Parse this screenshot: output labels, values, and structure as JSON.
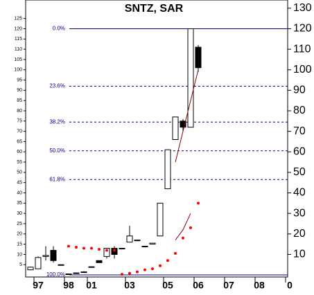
{
  "chart_data": {
    "type": "candlestick",
    "title": "SNTZ, SAR",
    "categories": [
      null,
      "97",
      null,
      null,
      null,
      "98",
      null,
      null,
      "01",
      null,
      null,
      null,
      null,
      "03",
      null,
      null,
      null,
      null,
      "05",
      null,
      null,
      null,
      "06",
      null,
      null,
      null,
      "07",
      null,
      null,
      null,
      "08",
      null,
      null,
      null,
      "0"
    ],
    "open": [
      2.5,
      3,
      9,
      12,
      5,
      0.5,
      1,
      1.5,
      4,
      7,
      9,
      13,
      13,
      16,
      17,
      14,
      15,
      19,
      42,
      66,
      75,
      72,
      111,
      null,
      null,
      null,
      null,
      null,
      null,
      null,
      null,
      null,
      null,
      null,
      null
    ],
    "high": [
      4,
      9,
      14,
      14,
      5,
      0.5,
      1.2,
      1.8,
      4.2,
      7,
      13,
      14,
      13,
      24,
      17,
      14,
      15.5,
      35,
      61,
      77,
      76,
      120,
      112,
      null,
      null,
      null,
      null,
      null,
      null,
      null,
      null,
      null,
      null,
      null,
      null
    ],
    "low": [
      2.3,
      3,
      7,
      6,
      5,
      0.5,
      0.8,
      1.2,
      3.8,
      6,
      8,
      8,
      13,
      16,
      17,
      14,
      15,
      19,
      42,
      66,
      70,
      72,
      99,
      null,
      null,
      null,
      null,
      null,
      null,
      null,
      null,
      null,
      null,
      null,
      null
    ],
    "close": [
      3.8,
      8.5,
      9.5,
      7,
      5,
      0.5,
      1,
      1.5,
      4,
      6,
      13,
      10,
      13,
      19,
      17,
      14,
      15.5,
      35,
      61,
      77,
      72,
      120,
      101,
      null,
      null,
      null,
      null,
      null,
      null,
      null,
      null,
      null,
      null,
      null,
      null
    ],
    "color": "#000000",
    "sar": {
      "color": "#ff0000",
      "values": [
        null,
        null,
        null,
        null,
        null,
        14,
        13.5,
        13,
        13,
        12.5,
        12,
        12,
        0.3,
        0.8,
        1.5,
        2.5,
        3,
        4.5,
        7,
        10.5,
        18,
        23,
        35,
        null,
        null,
        null,
        null,
        null,
        null,
        null,
        null,
        null,
        null,
        null,
        null
      ]
    },
    "lines": [
      {
        "color": "#8b0000",
        "values": [
          null,
          null,
          null,
          null,
          null,
          null,
          null,
          null,
          null,
          null,
          null,
          null,
          null,
          null,
          null,
          null,
          null,
          null,
          null,
          17,
          22,
          30,
          null,
          null,
          null,
          null,
          null,
          null,
          null,
          null,
          null,
          null,
          null,
          null,
          null
        ]
      },
      {
        "color": "#8b0000",
        "values": [
          null,
          null,
          null,
          null,
          null,
          null,
          null,
          null,
          null,
          null,
          null,
          null,
          null,
          null,
          null,
          null,
          null,
          null,
          null,
          55,
          70,
          85,
          100,
          null,
          null,
          null,
          null,
          null,
          null,
          null,
          null,
          null,
          null,
          null,
          null
        ]
      }
    ],
    "fib_labels": [
      "0.0%",
      "23.6%",
      "38.2%",
      "50.0%",
      "61.8%",
      "100.0%"
    ],
    "fib_values": [
      120,
      92,
      74.5,
      60.5,
      46.5,
      0
    ],
    "fib_color": "#00008b",
    "ylim": [
      -1,
      134
    ],
    "yticks": [
      5,
      10,
      15,
      20,
      25,
      30,
      35,
      40,
      45,
      50,
      55,
      60,
      65,
      70,
      75,
      80,
      85,
      90,
      95,
      100,
      105,
      110,
      115,
      120,
      125
    ],
    "y2lim": [
      -1,
      134
    ],
    "y2ticks": [
      10,
      20,
      30,
      40,
      50,
      60,
      70,
      80,
      90,
      100,
      110,
      120,
      130
    ]
  }
}
